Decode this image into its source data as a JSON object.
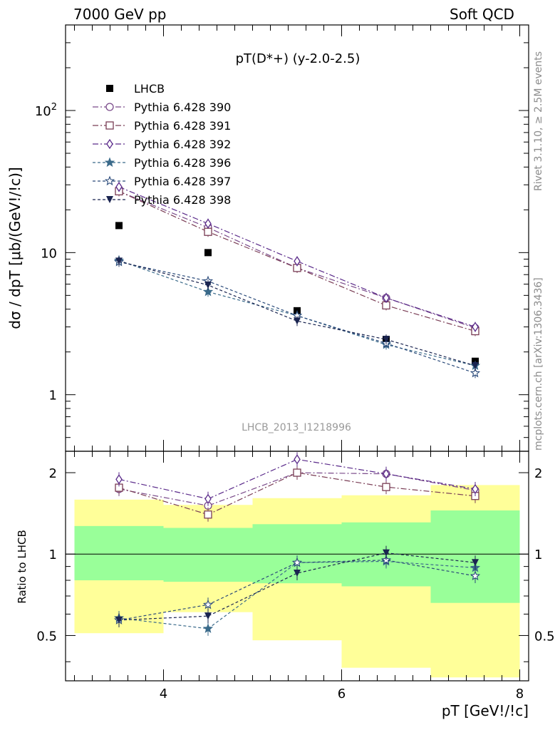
{
  "header": {
    "left": "7000 GeV pp",
    "right": "Soft QCD"
  },
  "side_labels": {
    "rivet": "Rivet 3.1.10, ≥ 2.5M events",
    "mcplots": "mcplots.cern.ch [arXiv:1306.3436]"
  },
  "chart_data": [
    {
      "type": "scatter",
      "panel": "main",
      "title": "pT(D*+) (y-2.0-2.5)",
      "ylabel": "dσ / dpT [μb/(GeV!/!c)]",
      "watermark": "LHCB_2013_I1218996",
      "yscale": "log",
      "ylim": [
        0.4,
        400
      ],
      "xlim": [
        2.9,
        8.1
      ],
      "yticks": [
        "1",
        "10",
        "10²"
      ],
      "legend_position": "top-left",
      "x": [
        3.5,
        4.5,
        5.5,
        6.5,
        7.5
      ],
      "series": [
        {
          "name": "LHCB",
          "marker": "square-filled",
          "color": "#000000",
          "values": [
            15.5,
            10.0,
            3.9,
            2.45,
            1.72
          ]
        },
        {
          "name": "Pythia 6.428 390",
          "marker": "circle",
          "color": "#7a4a8a",
          "dash": "8,3,2,3",
          "values": [
            27.0,
            15.0,
            7.8,
            4.8,
            2.95
          ]
        },
        {
          "name": "Pythia 6.428 391",
          "marker": "square",
          "color": "#7a3d55",
          "dash": "8,3,2,3",
          "values": [
            27.0,
            14.0,
            7.8,
            4.25,
            2.8
          ]
        },
        {
          "name": "Pythia 6.428 392",
          "marker": "diamond",
          "color": "#5a2a8a",
          "dash": "8,3,2,3",
          "values": [
            29.0,
            16.0,
            8.7,
            4.8,
            3.0
          ]
        },
        {
          "name": "Pythia 6.428 396",
          "marker": "star-filled",
          "color": "#3a6a8a",
          "dash": "4,3",
          "values": [
            8.8,
            5.3,
            3.6,
            2.25,
            1.6
          ]
        },
        {
          "name": "Pythia 6.428 397",
          "marker": "star",
          "color": "#2a4a7a",
          "dash": "4,3",
          "values": [
            8.6,
            6.3,
            3.6,
            2.3,
            1.42
          ]
        },
        {
          "name": "Pythia 6.428 398",
          "marker": "triangle-down",
          "color": "#1a2450",
          "dash": "4,3",
          "values": [
            8.7,
            5.9,
            3.3,
            2.45,
            1.6
          ]
        }
      ]
    },
    {
      "type": "scatter",
      "panel": "ratio",
      "ylabel": "Ratio to LHCB",
      "xlabel": "pT [GeV!/!c]",
      "xlim": [
        2.9,
        8.1
      ],
      "ylim": [
        0.34,
        2.4
      ],
      "yscale": "log",
      "xticks": [
        "4",
        "6",
        "8"
      ],
      "yticks": [
        "0.5",
        "1",
        "2"
      ],
      "bands": {
        "x_edges": [
          3.0,
          4.0,
          5.0,
          6.0,
          7.0,
          8.0
        ],
        "inner_low": [
          0.8,
          0.79,
          0.78,
          0.76,
          0.66
        ],
        "inner_high": [
          1.27,
          1.25,
          1.29,
          1.31,
          1.45
        ],
        "outer_low": [
          0.51,
          0.61,
          0.48,
          0.38,
          0.35
        ],
        "outer_high": [
          1.59,
          1.52,
          1.61,
          1.65,
          1.8
        ]
      },
      "x": [
        3.5,
        4.5,
        5.5,
        6.5,
        7.5
      ],
      "series": [
        {
          "name": "Pythia 6.428 390",
          "values": [
            1.74,
            1.51,
            2.0,
            1.98,
            1.72
          ]
        },
        {
          "name": "Pythia 6.428 391",
          "values": [
            1.76,
            1.4,
            2.0,
            1.77,
            1.64
          ]
        },
        {
          "name": "Pythia 6.428 392",
          "values": [
            1.89,
            1.6,
            2.24,
            1.98,
            1.74
          ]
        },
        {
          "name": "Pythia 6.428 396",
          "values": [
            0.58,
            0.53,
            0.93,
            0.94,
            0.89
          ]
        },
        {
          "name": "Pythia 6.428 397",
          "values": [
            0.57,
            0.65,
            0.93,
            0.95,
            0.83
          ]
        },
        {
          "name": "Pythia 6.428 398",
          "values": [
            0.57,
            0.59,
            0.85,
            1.01,
            0.93
          ]
        }
      ]
    }
  ]
}
